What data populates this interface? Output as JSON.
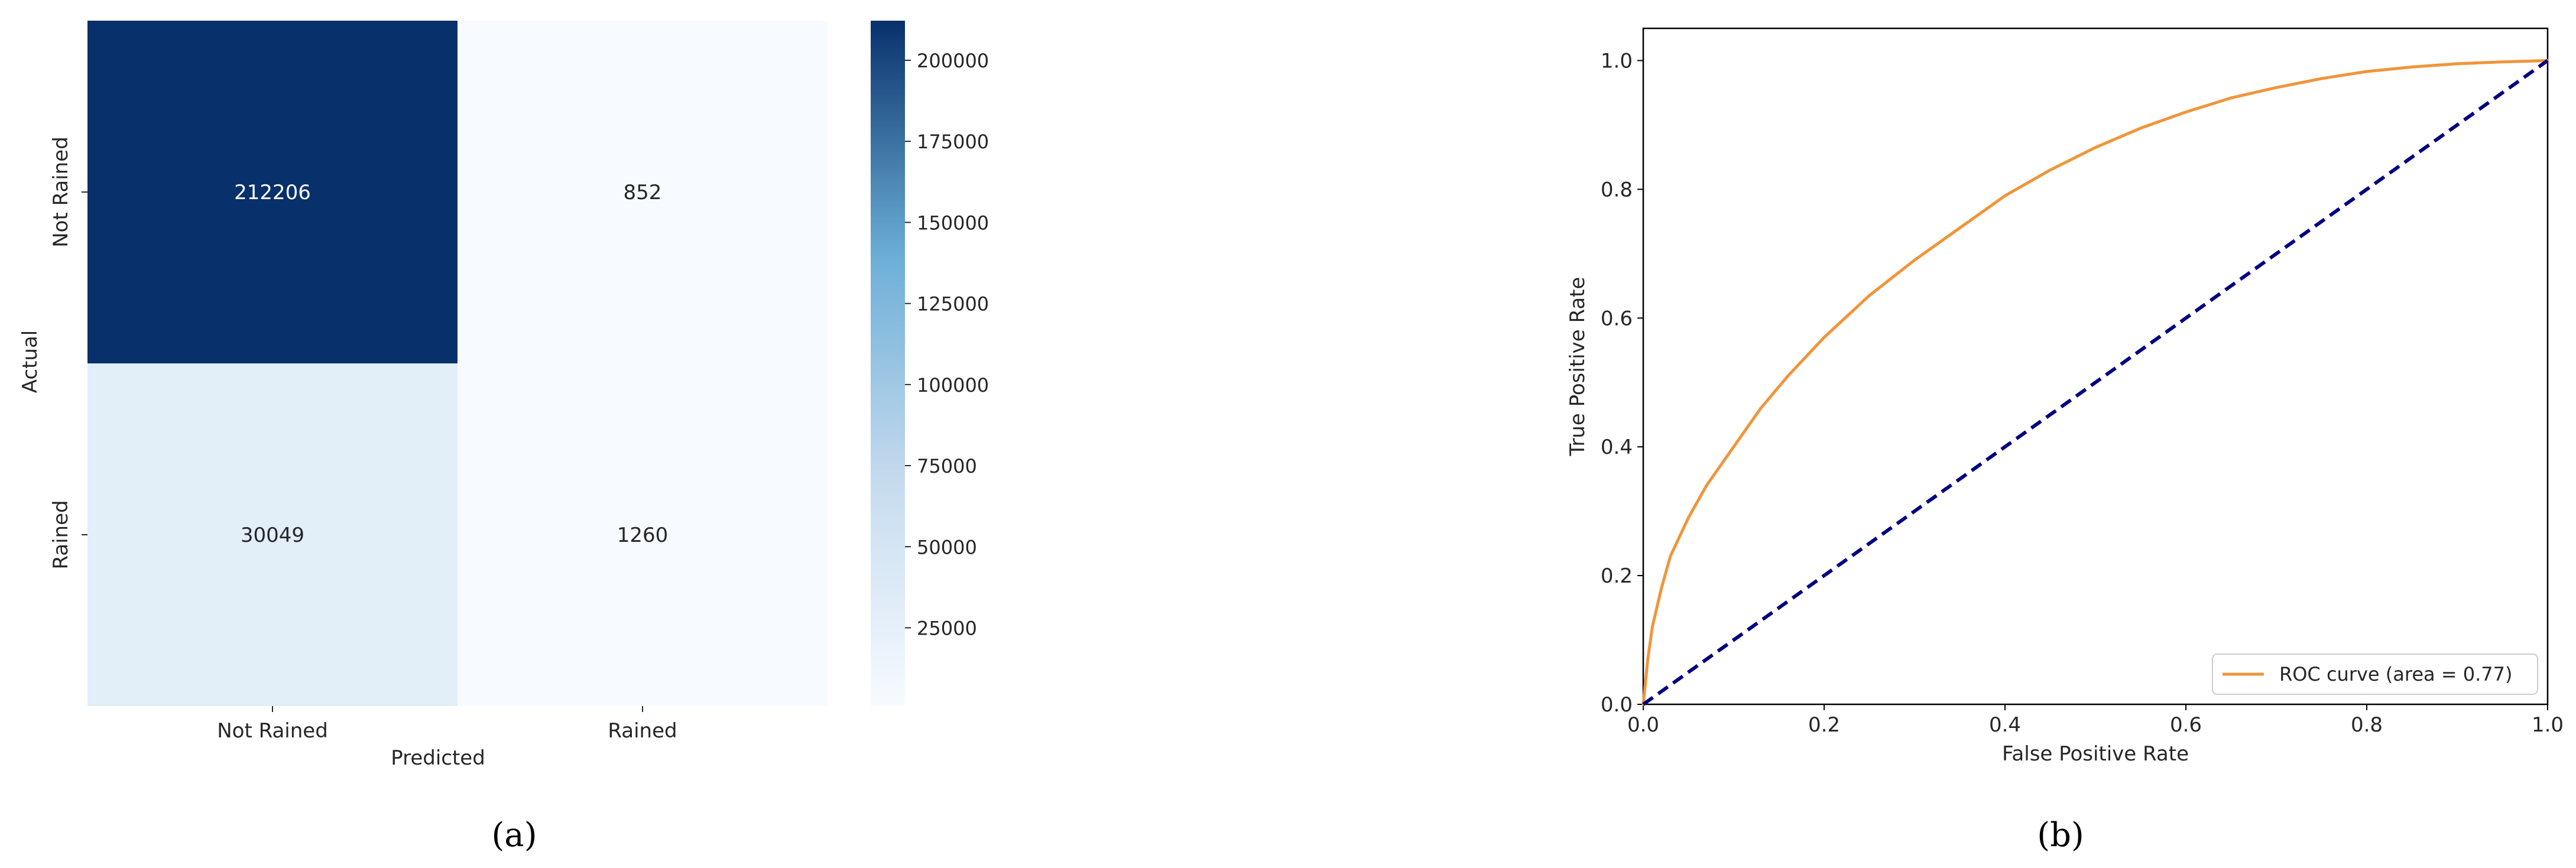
{
  "figure": {
    "panel_a_caption": "(a)",
    "panel_b_caption": "(b)"
  },
  "chart_data": [
    {
      "type": "heatmap",
      "xlabel": "Predicted",
      "ylabel": "Actual",
      "x_categories": [
        "Not Rained",
        "Rained"
      ],
      "y_categories": [
        "Not Rained",
        "Rained"
      ],
      "values": [
        [
          212206,
          852
        ],
        [
          30049,
          1260
        ]
      ],
      "colorbar": {
        "ticks": [
          25000,
          50000,
          75000,
          100000,
          125000,
          150000,
          175000,
          200000
        ],
        "range": [
          852,
          212206
        ],
        "colormap": "Blues",
        "low_color": "#f7fbff",
        "high_color": "#08306b"
      }
    },
    {
      "type": "line",
      "xlabel": "False Positive Rate",
      "ylabel": "True Positive Rate",
      "xlim": [
        0.0,
        1.0
      ],
      "ylim": [
        0.0,
        1.05
      ],
      "xticks": [
        "0.0",
        "0.2",
        "0.4",
        "0.6",
        "0.8",
        "1.0"
      ],
      "yticks": [
        "0.0",
        "0.2",
        "0.4",
        "0.6",
        "0.8",
        "1.0"
      ],
      "legend_position": "lower-right",
      "series": [
        {
          "name": "ROC curve (area = 0.77)",
          "color": "#f0953a",
          "style": "solid",
          "x": [
            0,
            0.005,
            0.01,
            0.02,
            0.03,
            0.05,
            0.07,
            0.1,
            0.13,
            0.16,
            0.2,
            0.25,
            0.3,
            0.35,
            0.4,
            0.45,
            0.5,
            0.55,
            0.6,
            0.65,
            0.7,
            0.75,
            0.8,
            0.85,
            0.9,
            0.95,
            1.0
          ],
          "y": [
            0,
            0.07,
            0.12,
            0.18,
            0.23,
            0.29,
            0.34,
            0.4,
            0.46,
            0.51,
            0.57,
            0.635,
            0.69,
            0.74,
            0.79,
            0.83,
            0.865,
            0.895,
            0.92,
            0.942,
            0.958,
            0.972,
            0.983,
            0.99,
            0.995,
            0.998,
            1.0
          ]
        },
        {
          "name": "",
          "color": "#000080",
          "style": "dashed",
          "x": [
            0,
            1
          ],
          "y": [
            0,
            1
          ]
        }
      ]
    }
  ]
}
